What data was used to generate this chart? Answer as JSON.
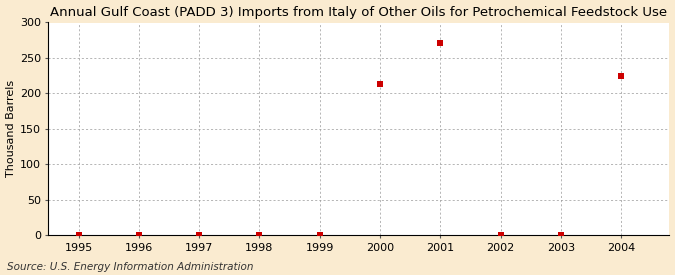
{
  "title": "Annual Gulf Coast (PADD 3) Imports from Italy of Other Oils for Petrochemical Feedstock Use",
  "ylabel": "Thousand Barrels",
  "source_text": "Source: U.S. Energy Information Administration",
  "x_data": [
    1995,
    1996,
    1997,
    1998,
    1999,
    2000,
    2001,
    2002,
    2003,
    2004
  ],
  "y_data": [
    0,
    0,
    0,
    0,
    0,
    214,
    271,
    0,
    0,
    224
  ],
  "xlim": [
    1994.5,
    2004.8
  ],
  "ylim": [
    0,
    300
  ],
  "yticks": [
    0,
    50,
    100,
    150,
    200,
    250,
    300
  ],
  "xticks": [
    1995,
    1996,
    1997,
    1998,
    1999,
    2000,
    2001,
    2002,
    2003,
    2004
  ],
  "marker_color": "#cc0000",
  "marker": "s",
  "marker_size": 4,
  "bg_color": "#faebd0",
  "plot_bg_color": "#ffffff",
  "grid_color": "#999999",
  "title_fontsize": 9.5,
  "axis_fontsize": 8,
  "tick_fontsize": 8,
  "source_fontsize": 7.5
}
